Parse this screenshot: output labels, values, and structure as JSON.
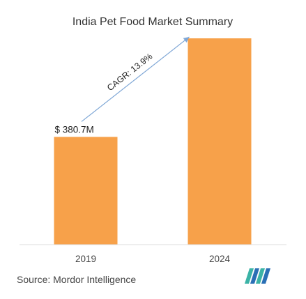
{
  "chart_data": {
    "type": "bar",
    "title": "India Pet Food Market Summary",
    "xlabel": "",
    "ylabel": "",
    "categories": [
      "2019",
      "2024"
    ],
    "values": [
      380.7,
      729.1
    ],
    "data_labels": [
      "$ 380.7M",
      ""
    ],
    "annotation": "CAGR: 13.9%",
    "grid": false,
    "legend": "none"
  },
  "source": "Source: Mordor Intelligence",
  "colors": {
    "bar": "#f7a14a",
    "baseline": "#dddddd",
    "cagr_line": "#7fa7d6",
    "logo_teal": "#3bb3a6",
    "logo_blue": "#2a6fb5"
  },
  "logo": {
    "icon": "mordor-intelligence-logo"
  }
}
